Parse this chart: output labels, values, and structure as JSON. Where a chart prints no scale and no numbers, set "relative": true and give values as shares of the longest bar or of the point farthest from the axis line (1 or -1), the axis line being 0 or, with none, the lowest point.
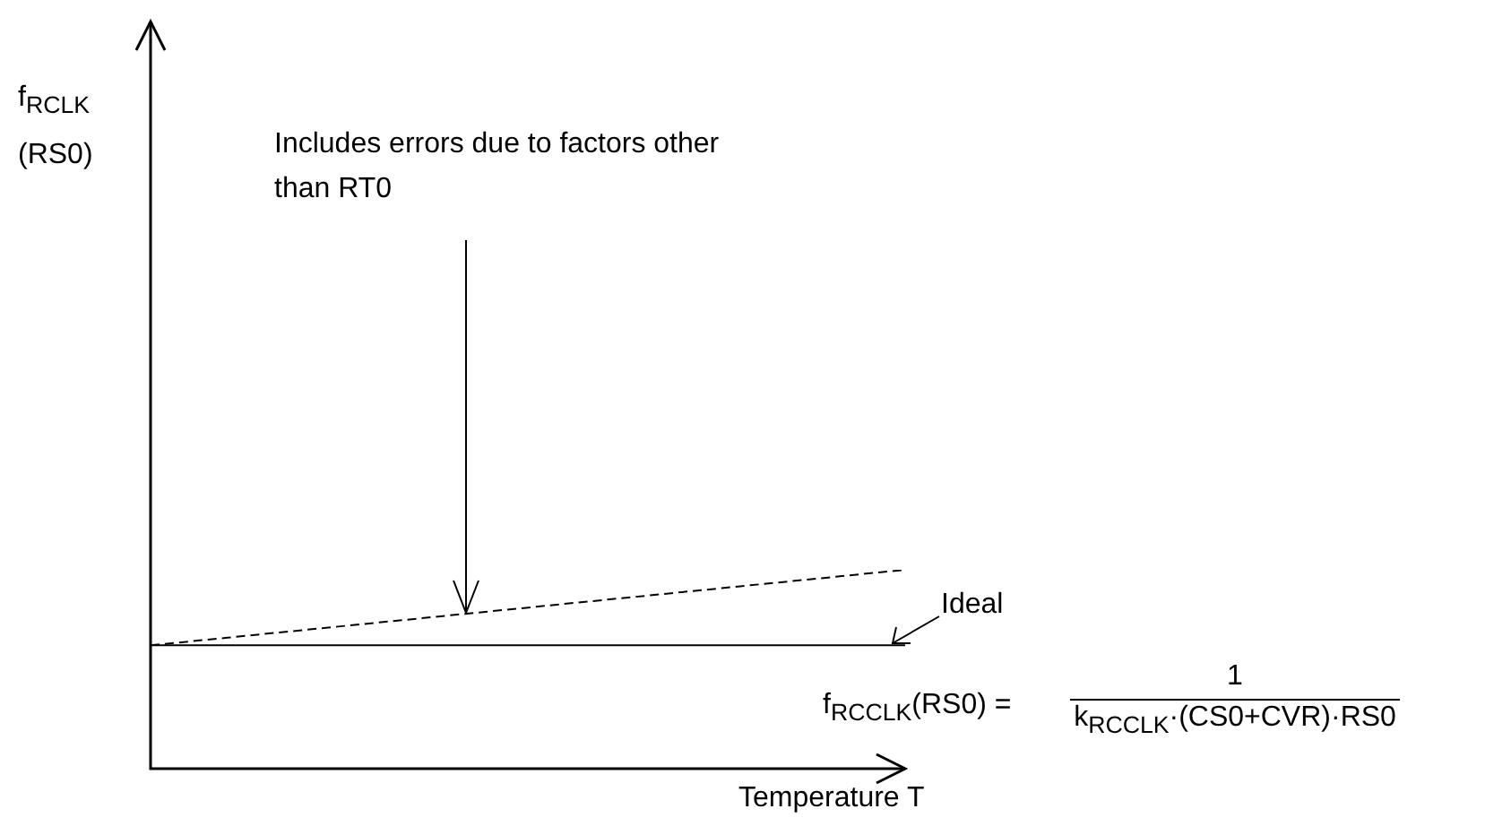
{
  "chart_data": {
    "type": "line",
    "relative": true,
    "categories": [
      null,
      null
    ],
    "series": [
      {
        "name": "Ideal",
        "color": "#000000",
        "values": [
          0.62,
          0.62
        ]
      },
      {
        "color": "#000000",
        "line_style": "dashed",
        "values": [
          0.62,
          1
        ]
      }
    ],
    "xlabel": "Temperature T",
    "marker": "none",
    "legend": false,
    "annotations": [
      "f$_{RCLK}$ (RS0)",
      "Includes errors due to factors other than RT0",
      "f$_{RCCLK}$(RS0) =",
      "1",
      "k$_{RCCLK}$·(CS0+CVR)·RS0"
    ]
  }
}
